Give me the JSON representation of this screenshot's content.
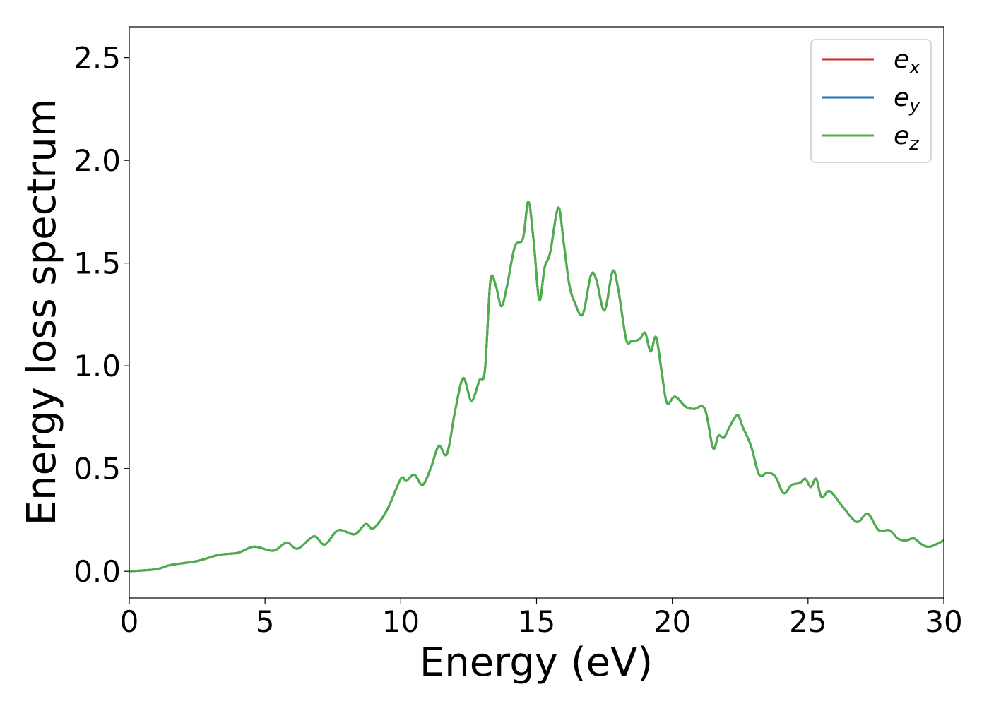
{
  "chart_data": {
    "type": "line",
    "title": "",
    "xlabel": "Energy (eV)",
    "ylabel": "Energy loss spectrum",
    "xlim": [
      0,
      30
    ],
    "ylim": [
      -0.13,
      2.65
    ],
    "xticks": [
      0,
      5,
      10,
      15,
      20,
      25,
      30
    ],
    "xtick_labels": [
      "0",
      "5",
      "10",
      "15",
      "20",
      "25",
      "30"
    ],
    "yticks": [
      0.0,
      0.5,
      1.0,
      1.5,
      2.0,
      2.5
    ],
    "ytick_labels": [
      "0.0",
      "0.5",
      "1.0",
      "1.5",
      "2.0",
      "2.5"
    ],
    "grid": false,
    "legend_position": "top-right",
    "series": [
      {
        "name": "e_x",
        "legend_base": "e",
        "legend_sub": "x",
        "color": "#d62728"
      },
      {
        "name": "e_y",
        "legend_base": "e",
        "legend_sub": "y",
        "color": "#1f77b4"
      },
      {
        "name": "e_z",
        "legend_base": "e",
        "legend_sub": "z",
        "color": "#4daf4a"
      }
    ],
    "x": [
      0,
      1,
      1.5,
      2.5,
      3.3,
      4.0,
      4.6,
      5.3,
      5.8,
      6.2,
      6.8,
      7.2,
      7.7,
      8.3,
      8.7,
      9.0,
      9.5,
      10.0,
      10.2,
      10.5,
      10.8,
      11.1,
      11.4,
      11.7,
      12.0,
      12.3,
      12.6,
      12.9,
      13.1,
      13.3,
      13.5,
      13.7,
      13.9,
      14.2,
      14.5,
      14.7,
      14.9,
      15.1,
      15.3,
      15.5,
      15.8,
      16.0,
      16.2,
      16.4,
      16.7,
      17.0,
      17.2,
      17.5,
      17.8,
      18.0,
      18.3,
      18.5,
      18.8,
      19.0,
      19.2,
      19.4,
      19.6,
      19.8,
      20.1,
      20.5,
      20.8,
      21.2,
      21.5,
      21.7,
      21.9,
      22.1,
      22.4,
      22.6,
      22.9,
      23.2,
      23.5,
      23.8,
      24.1,
      24.4,
      24.7,
      24.9,
      25.1,
      25.3,
      25.5,
      25.8,
      26.3,
      26.8,
      27.2,
      27.6,
      28.0,
      28.3,
      28.6,
      28.9,
      29.2,
      29.5,
      30.0
    ],
    "values": [
      0.0,
      0.01,
      0.03,
      0.05,
      0.08,
      0.09,
      0.12,
      0.1,
      0.14,
      0.11,
      0.17,
      0.13,
      0.2,
      0.18,
      0.23,
      0.21,
      0.3,
      0.45,
      0.44,
      0.47,
      0.42,
      0.5,
      0.61,
      0.57,
      0.78,
      0.94,
      0.83,
      0.93,
      0.98,
      1.41,
      1.39,
      1.29,
      1.38,
      1.58,
      1.62,
      1.8,
      1.6,
      1.32,
      1.48,
      1.55,
      1.77,
      1.6,
      1.4,
      1.31,
      1.25,
      1.44,
      1.42,
      1.27,
      1.46,
      1.38,
      1.13,
      1.12,
      1.13,
      1.16,
      1.07,
      1.14,
      0.98,
      0.82,
      0.85,
      0.8,
      0.79,
      0.79,
      0.6,
      0.66,
      0.65,
      0.7,
      0.76,
      0.7,
      0.61,
      0.47,
      0.48,
      0.46,
      0.38,
      0.42,
      0.43,
      0.45,
      0.41,
      0.45,
      0.36,
      0.39,
      0.31,
      0.24,
      0.28,
      0.2,
      0.2,
      0.16,
      0.15,
      0.16,
      0.13,
      0.12,
      0.15
    ]
  }
}
